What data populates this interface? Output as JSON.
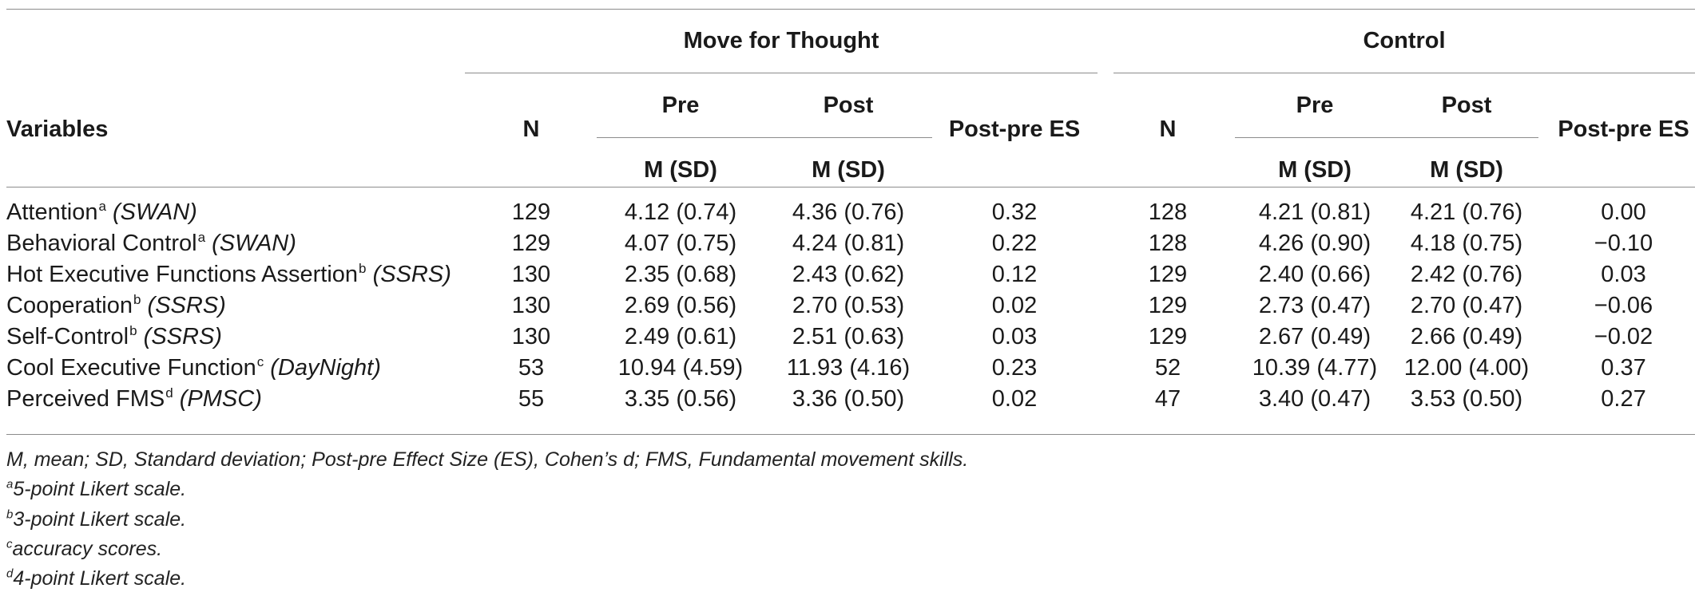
{
  "header": {
    "variables": "Variables",
    "group1": "Move for Thought",
    "group2": "Control",
    "n": "N",
    "pre": "Pre",
    "post": "Post",
    "es": "Post-pre ES",
    "msd": "M (SD)"
  },
  "rows": [
    {
      "name": "Attention",
      "sup": "a",
      "scale": "(SWAN)",
      "mft_n": "129",
      "mft_pre": "4.12 (0.74)",
      "mft_post": "4.36 (0.76)",
      "mft_es": "0.32",
      "ctl_n": "128",
      "ctl_pre": "4.21 (0.81)",
      "ctl_post": "4.21 (0.76)",
      "ctl_es": "0.00"
    },
    {
      "name": "Behavioral Control",
      "sup": "a",
      "scale": "(SWAN)",
      "mft_n": "129",
      "mft_pre": "4.07 (0.75)",
      "mft_post": "4.24 (0.81)",
      "mft_es": "0.22",
      "ctl_n": "128",
      "ctl_pre": "4.26 (0.90)",
      "ctl_post": "4.18 (0.75)",
      "ctl_es": "−0.10"
    },
    {
      "name": "Hot Executive Functions Assertion",
      "sup": "b",
      "scale": "(SSRS)",
      "mft_n": "130",
      "mft_pre": "2.35 (0.68)",
      "mft_post": "2.43 (0.62)",
      "mft_es": "0.12",
      "ctl_n": "129",
      "ctl_pre": "2.40 (0.66)",
      "ctl_post": "2.42 (0.76)",
      "ctl_es": "0.03"
    },
    {
      "name": "Cooperation",
      "sup": "b",
      "scale": "(SSRS)",
      "mft_n": "130",
      "mft_pre": "2.69 (0.56)",
      "mft_post": "2.70 (0.53)",
      "mft_es": "0.02",
      "ctl_n": "129",
      "ctl_pre": "2.73 (0.47)",
      "ctl_post": "2.70 (0.47)",
      "ctl_es": "−0.06"
    },
    {
      "name": "Self-Control",
      "sup": "b",
      "scale": "(SSRS)",
      "mft_n": "130",
      "mft_pre": "2.49 (0.61)",
      "mft_post": "2.51 (0.63)",
      "mft_es": "0.03",
      "ctl_n": "129",
      "ctl_pre": "2.67 (0.49)",
      "ctl_post": "2.66 (0.49)",
      "ctl_es": "−0.02"
    },
    {
      "name": "Cool Executive Function",
      "sup": "c",
      "scale": "(DayNight)",
      "mft_n": "53",
      "mft_pre": "10.94 (4.59)",
      "mft_post": "11.93 (4.16)",
      "mft_es": "0.23",
      "ctl_n": "52",
      "ctl_pre": "10.39 (4.77)",
      "ctl_post": "12.00 (4.00)",
      "ctl_es": "0.37"
    },
    {
      "name": "Perceived FMS",
      "sup": "d",
      "scale": "(PMSC)",
      "mft_n": "55",
      "mft_pre": "3.35 (0.56)",
      "mft_post": "3.36 (0.50)",
      "mft_es": "0.02",
      "ctl_n": "47",
      "ctl_pre": "3.40 (0.47)",
      "ctl_post": "3.53 (0.50)",
      "ctl_es": "0.27"
    }
  ],
  "notes": {
    "abbrev": "M, mean; SD, Standard deviation; Post-pre Effect Size (ES), Cohen’s d; FMS, Fundamental movement skills.",
    "a": {
      "sup": "a",
      "text": "5-point Likert scale."
    },
    "b": {
      "sup": "b",
      "text": "3-point Likert scale."
    },
    "c": {
      "sup": "c",
      "text": "accuracy scores."
    },
    "d": {
      "sup": "d",
      "text": "4-point Likert scale."
    }
  }
}
